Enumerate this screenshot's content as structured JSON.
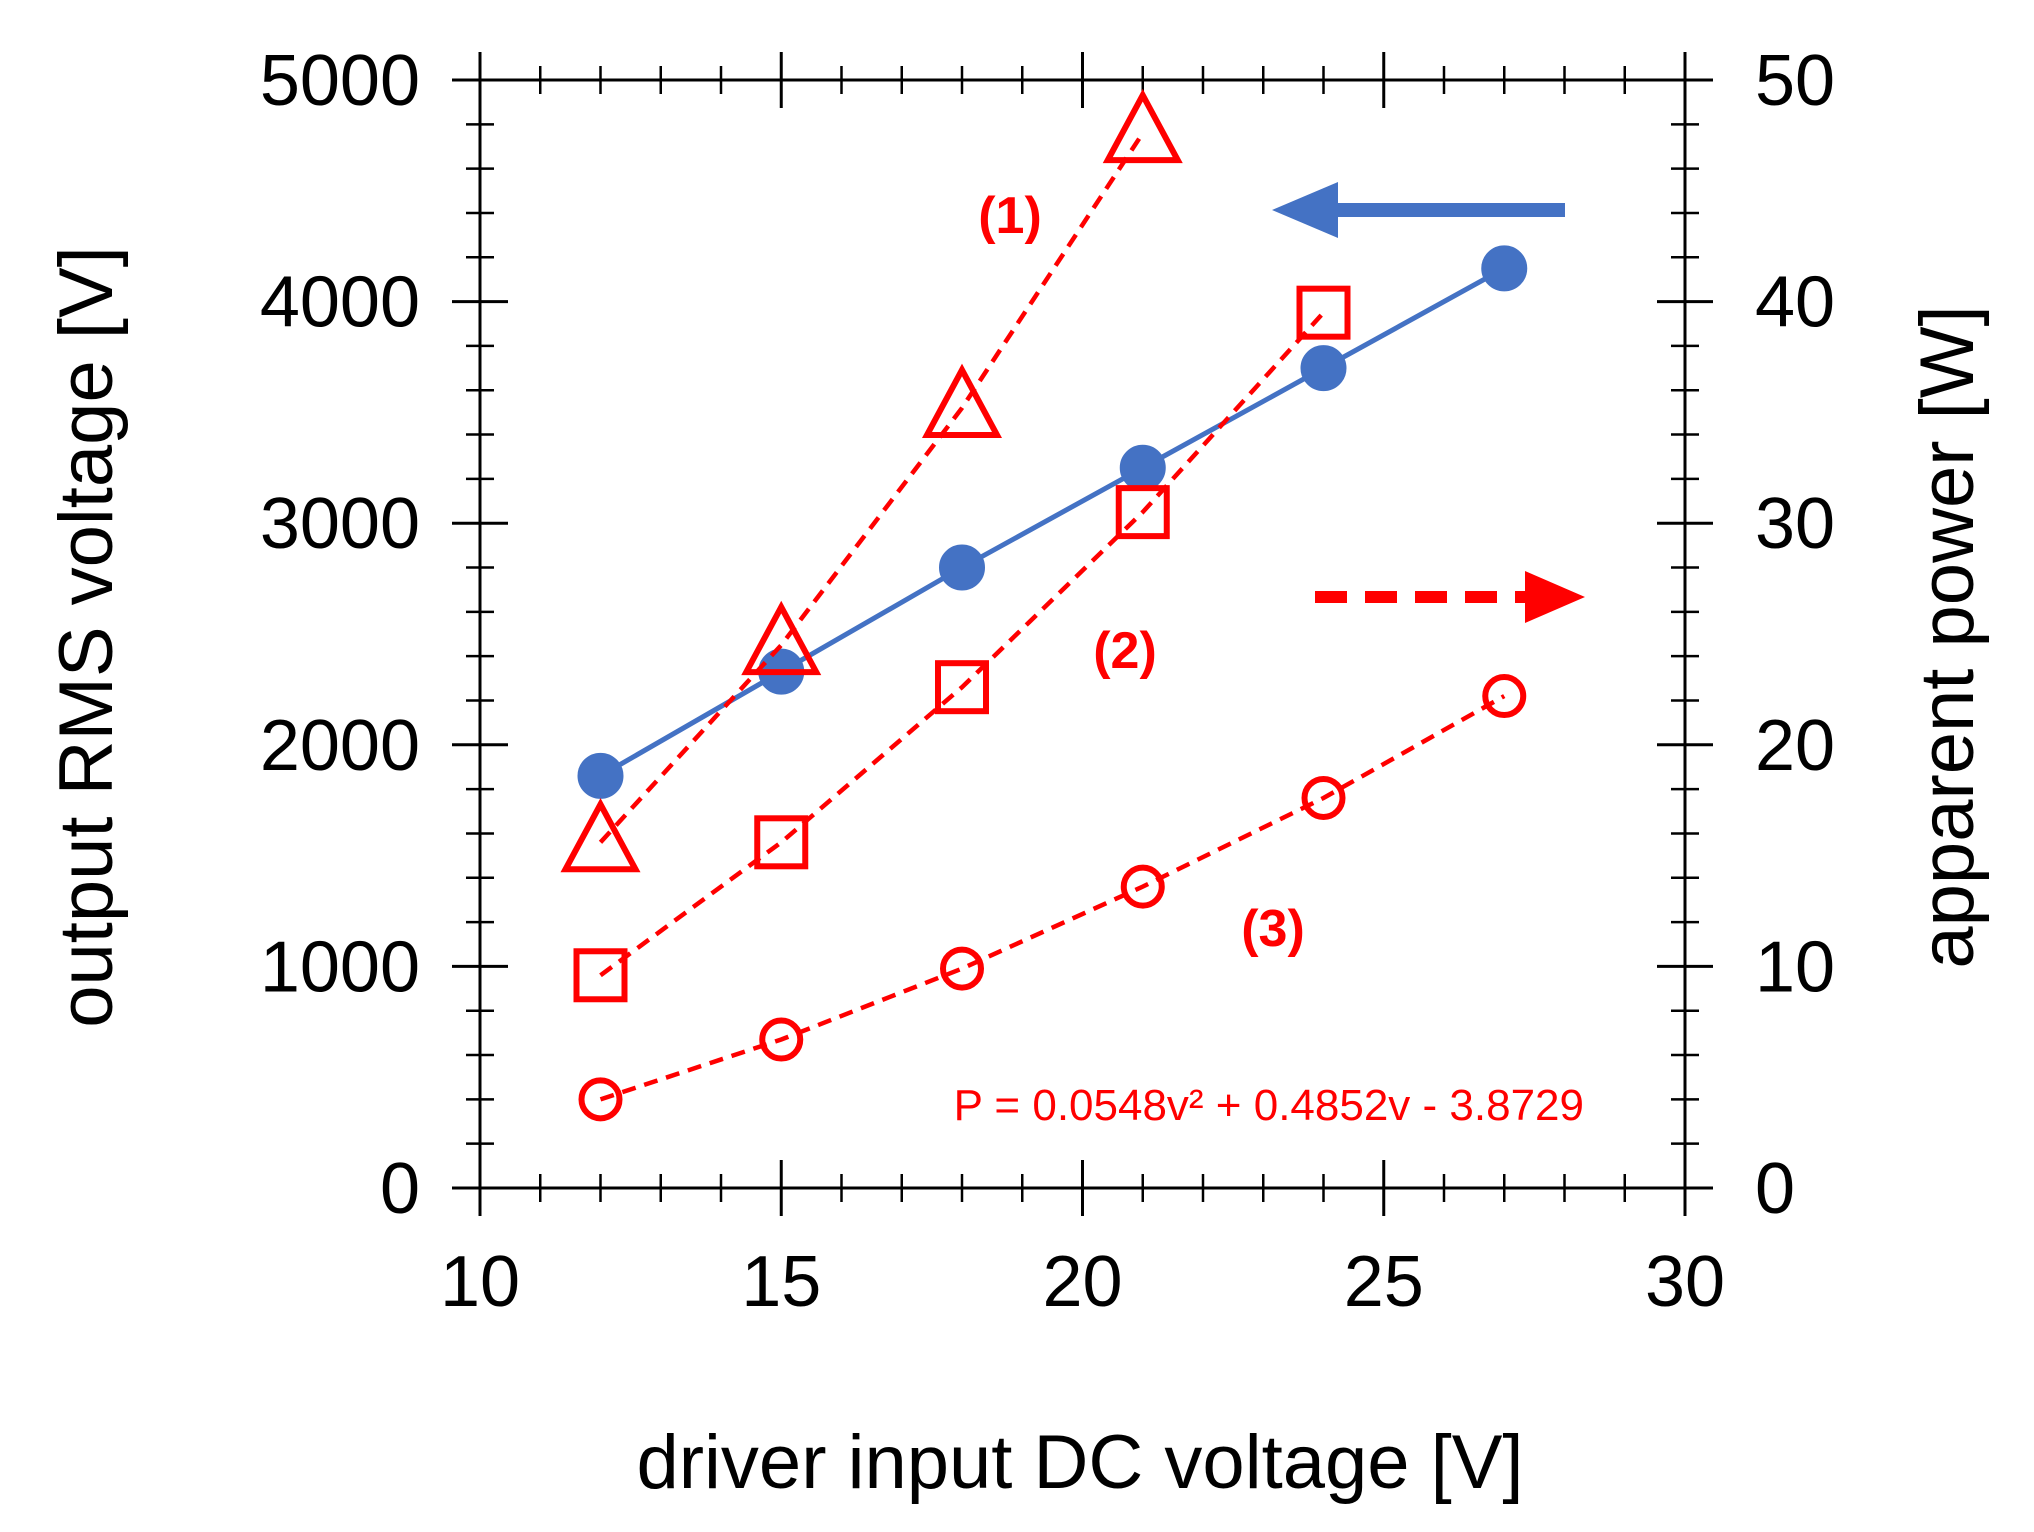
{
  "chart_data": {
    "type": "line",
    "xlabel": "driver input DC voltage [V]",
    "ylabel_left": "output RMS voltage [V]",
    "ylabel_right": "apparent power  [W]",
    "xlim": [
      10,
      30
    ],
    "ylim_left": [
      0,
      5000
    ],
    "ylim_right": [
      0,
      50
    ],
    "x_ticks": [
      "10",
      "15",
      "20",
      "25",
      "30"
    ],
    "y_left_ticks": [
      "0",
      "1000",
      "2000",
      "3000",
      "4000",
      "5000"
    ],
    "y_right_ticks": [
      "0",
      "10",
      "20",
      "30",
      "40",
      "50"
    ],
    "grid": false,
    "series": [
      {
        "name": "output RMS voltage",
        "axis": "left",
        "marker": "filled-circle",
        "line": "solid",
        "color": "#4472C4",
        "x": [
          12,
          15,
          18,
          21,
          24,
          27
        ],
        "values": [
          1860,
          2330,
          2800,
          3250,
          3700,
          4150
        ]
      },
      {
        "name": "(1)",
        "axis": "right",
        "marker": "open-triangle",
        "line": "dashed",
        "color": "#FF0000",
        "x": [
          12,
          15,
          18,
          21
        ],
        "values": [
          15.6,
          24.5,
          35.2,
          47.6
        ]
      },
      {
        "name": "(2)",
        "axis": "right",
        "marker": "open-square",
        "line": "dashed",
        "color": "#FF0000",
        "x": [
          12,
          15,
          18,
          21,
          24
        ],
        "values": [
          9.6,
          15.6,
          22.6,
          30.5,
          39.5
        ]
      },
      {
        "name": "(3)",
        "axis": "right",
        "marker": "open-circle",
        "line": "dashed",
        "color": "#FF0000",
        "x": [
          12,
          15,
          18,
          21,
          24,
          27
        ],
        "values": [
          4.0,
          6.7,
          9.9,
          13.6,
          17.6,
          22.2
        ]
      }
    ],
    "annotations": {
      "label_1": "(1)",
      "label_2": "(2)",
      "label_3": "(3)",
      "formula": "P = 0.0548v² + 0.4852v - 3.8729",
      "left_arrow": "left-arrow-icon",
      "right_arrow": "right-arrow-icon"
    }
  }
}
